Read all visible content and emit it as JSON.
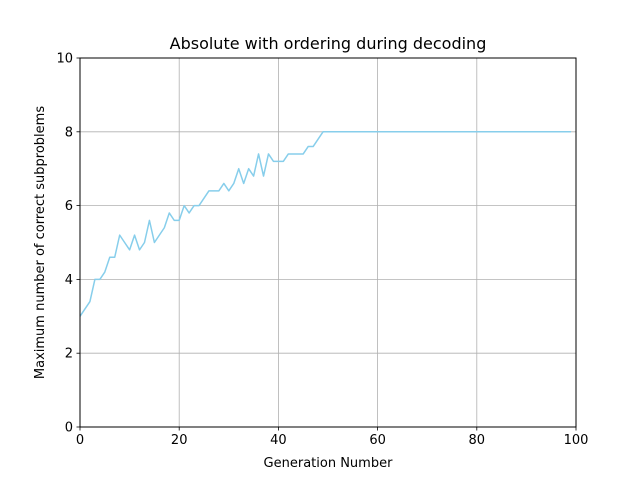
{
  "chart_data": {
    "type": "line",
    "title": "Absolute with ordering during decoding",
    "xlabel": "Generation Number",
    "ylabel": "Maximum number of correct subproblems",
    "xlim": [
      0,
      100
    ],
    "ylim": [
      0,
      10
    ],
    "xticks": [
      "0",
      "20",
      "40",
      "60",
      "80",
      "100"
    ],
    "yticks": [
      "0",
      "2",
      "4",
      "6",
      "8",
      "10"
    ],
    "grid": true,
    "series": [
      {
        "color": "#87ceeb",
        "x": [
          0,
          1,
          2,
          3,
          4,
          5,
          6,
          7,
          8,
          9,
          10,
          11,
          12,
          13,
          14,
          15,
          16,
          17,
          18,
          19,
          20,
          21,
          22,
          23,
          24,
          25,
          26,
          27,
          28,
          29,
          30,
          31,
          32,
          33,
          34,
          35,
          36,
          37,
          38,
          39,
          40,
          41,
          42,
          43,
          44,
          45,
          46,
          47,
          48,
          49,
          50,
          51,
          52,
          53,
          54,
          55,
          56,
          57,
          58,
          59,
          60,
          61,
          62,
          63,
          64,
          65,
          66,
          67,
          68,
          69,
          70,
          71,
          72,
          73,
          74,
          75,
          76,
          77,
          78,
          79,
          80,
          81,
          82,
          83,
          84,
          85,
          86,
          87,
          88,
          89,
          90,
          91,
          92,
          93,
          94,
          95,
          96,
          97,
          98,
          99
        ],
        "y": [
          3.0,
          3.2,
          3.4,
          4.0,
          4.0,
          4.2,
          4.6,
          4.6,
          5.2,
          5.0,
          4.8,
          5.2,
          4.8,
          5.0,
          5.6,
          5.0,
          5.2,
          5.4,
          5.8,
          5.6,
          5.6,
          6.0,
          5.8,
          6.0,
          6.0,
          6.2,
          6.4,
          6.4,
          6.4,
          6.6,
          6.4,
          6.6,
          7.0,
          6.6,
          7.0,
          6.8,
          7.4,
          6.8,
          7.4,
          7.2,
          7.2,
          7.2,
          7.4,
          7.4,
          7.4,
          7.4,
          7.6,
          7.6,
          7.8,
          8.0,
          8.0,
          8.0,
          8.0,
          8.0,
          8.0,
          8.0,
          8.0,
          8.0,
          8.0,
          8.0,
          8.0,
          8.0,
          8.0,
          8.0,
          8.0,
          8.0,
          8.0,
          8.0,
          8.0,
          8.0,
          8.0,
          8.0,
          8.0,
          8.0,
          8.0,
          8.0,
          8.0,
          8.0,
          8.0,
          8.0,
          8.0,
          8.0,
          8.0,
          8.0,
          8.0,
          8.0,
          8.0,
          8.0,
          8.0,
          8.0,
          8.0,
          8.0,
          8.0,
          8.0,
          8.0,
          8.0,
          8.0,
          8.0,
          8.0,
          8.0
        ]
      }
    ]
  }
}
